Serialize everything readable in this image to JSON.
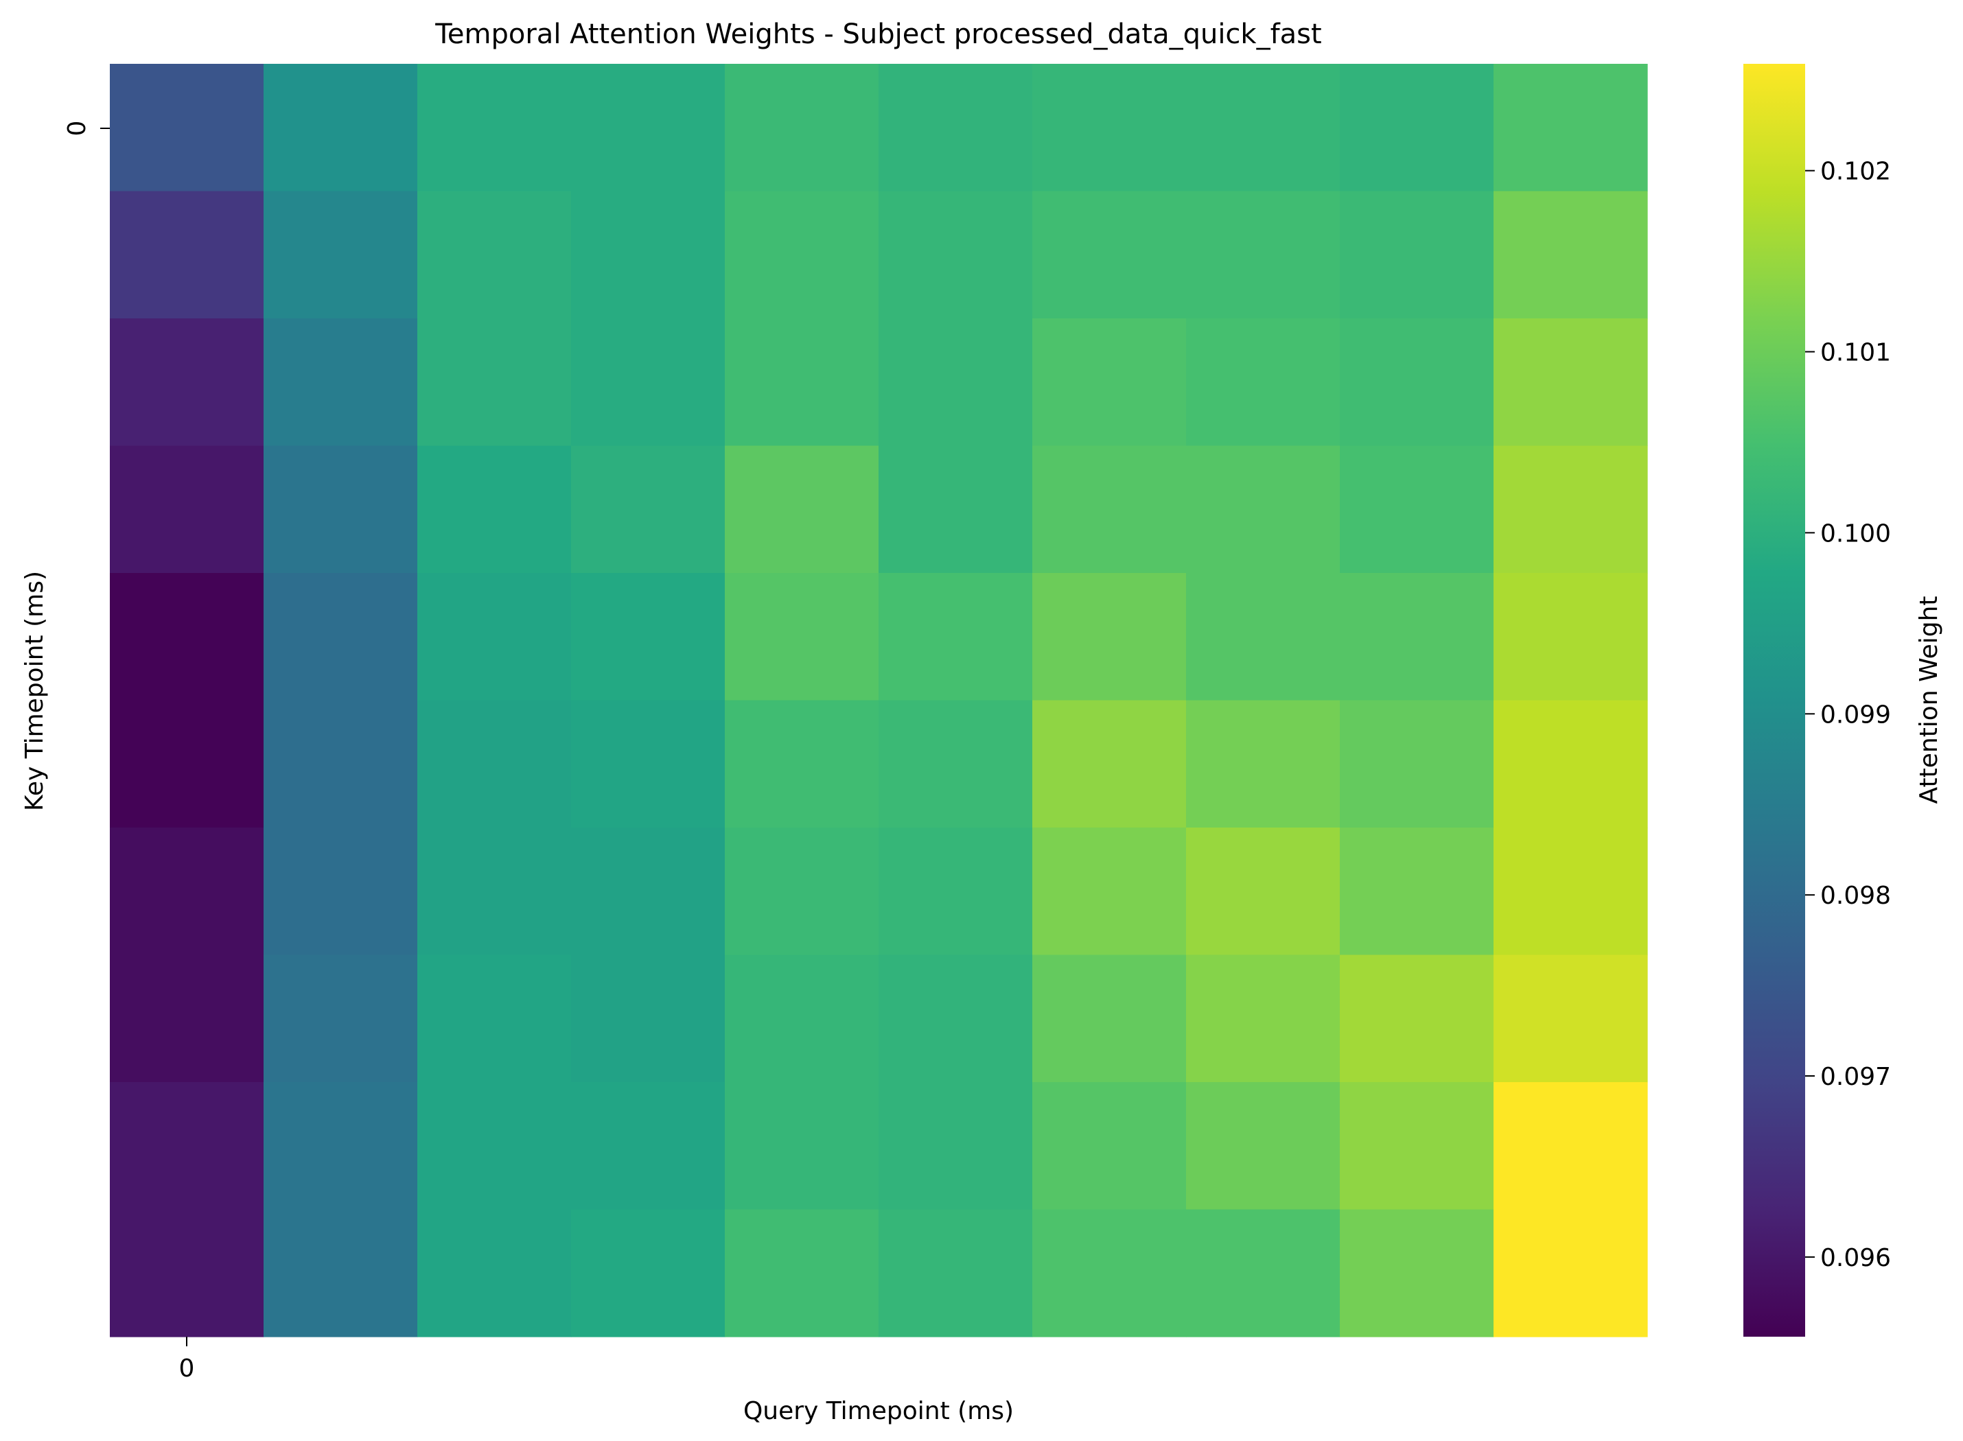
{
  "chart_data": {
    "type": "heatmap",
    "title": "Temporal Attention Weights - Subject processed_data_quick_fast",
    "xlabel": "Query Timepoint (ms)",
    "ylabel": "Key Timepoint (ms)",
    "x_tick_labels": [
      "0"
    ],
    "y_tick_labels": [
      "0"
    ],
    "colorbar": {
      "label": "Attention Weight",
      "colormap": "viridis",
      "range": [
        0.09556,
        0.10259
      ],
      "ticks": [
        "0.096",
        "0.097",
        "0.098",
        "0.099",
        "0.100",
        "0.101",
        "0.102"
      ]
    },
    "grid": false,
    "rows": 10,
    "cols": 10,
    "values": [
      [
        0.0974,
        0.0991,
        0.0999,
        0.0999,
        0.1003,
        0.1001,
        0.1002,
        0.1002,
        0.1001,
        0.1006
      ],
      [
        0.0967,
        0.0988,
        0.1,
        0.0999,
        0.1004,
        0.1002,
        0.1004,
        0.1004,
        0.1003,
        0.1011
      ],
      [
        0.0962,
        0.0985,
        0.1,
        0.0999,
        0.1004,
        0.1002,
        0.1006,
        0.1005,
        0.1004,
        0.1014
      ],
      [
        0.096,
        0.0983,
        0.0998,
        0.1,
        0.1008,
        0.1002,
        0.1007,
        0.1007,
        0.1005,
        0.1016
      ],
      [
        0.0956,
        0.0981,
        0.0997,
        0.0998,
        0.1007,
        0.1005,
        0.101,
        0.1007,
        0.1007,
        0.1017
      ],
      [
        0.0956,
        0.0981,
        0.0996,
        0.0997,
        0.1004,
        0.1003,
        0.1014,
        0.1011,
        0.1009,
        0.1019
      ],
      [
        0.0958,
        0.0981,
        0.0996,
        0.0996,
        0.1003,
        0.1002,
        0.1012,
        0.1015,
        0.1011,
        0.1019
      ],
      [
        0.0958,
        0.0982,
        0.0997,
        0.0996,
        0.1002,
        0.1001,
        0.1009,
        0.1013,
        0.1016,
        0.1021
      ],
      [
        0.096,
        0.0983,
        0.0997,
        0.0997,
        0.1002,
        0.1001,
        0.1007,
        0.101,
        0.1014,
        0.1026
      ],
      [
        0.096,
        0.0983,
        0.0997,
        0.0998,
        0.1004,
        0.1002,
        0.1006,
        0.1006,
        0.1011,
        0.1026
      ]
    ]
  }
}
